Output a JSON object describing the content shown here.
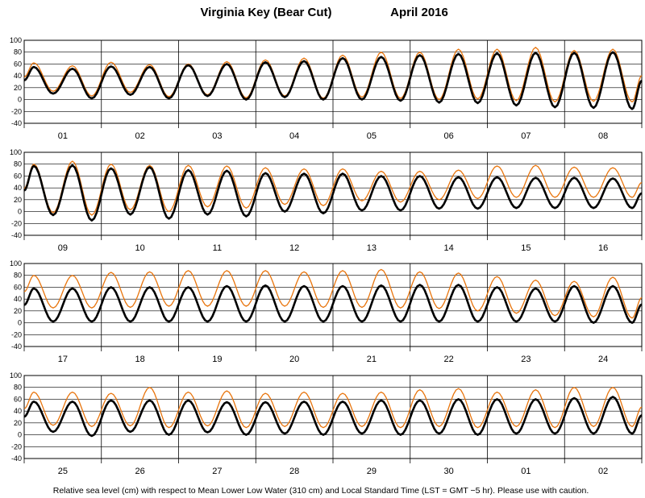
{
  "chart_data": {
    "type": "line",
    "title": "Virginia Key (Bear Cut)",
    "period": "April   2016",
    "footer": "Relative sea level (cm) with respect to Mean Lower Low Water (310 cm) and Local Standard Time (LST = GMT −5 hr). Please use with caution.",
    "ylim": [
      -40,
      100
    ],
    "yticks": [
      -40,
      -20,
      0,
      20,
      40,
      60,
      80,
      100
    ],
    "grid": true,
    "series": [
      {
        "color": "#000000",
        "width": 2.6
      },
      {
        "color": "#e8740c",
        "width": 1.3
      }
    ],
    "panels": [
      {
        "days": [
          "01",
          "02",
          "03",
          "04",
          "05",
          "06",
          "07",
          "08"
        ],
        "observed_highs": [
          55,
          52,
          56,
          55,
          58,
          60,
          63,
          65,
          70,
          72,
          75,
          77,
          78,
          79,
          79,
          80
        ],
        "observed_lows": [
          10,
          2,
          8,
          2,
          6,
          0,
          4,
          0,
          0,
          -2,
          -5,
          -6,
          -10,
          -13,
          -14,
          -16
        ],
        "predicted_highs": [
          62,
          57,
          63,
          59,
          60,
          64,
          67,
          70,
          75,
          80,
          80,
          85,
          85,
          88,
          83,
          85
        ],
        "predicted_lows": [
          14,
          6,
          12,
          5,
          8,
          3,
          6,
          2,
          4,
          2,
          0,
          1,
          -2,
          -4,
          -3,
          -4
        ]
      },
      {
        "days": [
          "09",
          "10",
          "11",
          "12",
          "13",
          "14",
          "15",
          "16"
        ],
        "observed_highs": [
          77,
          78,
          73,
          75,
          70,
          69,
          65,
          64,
          64,
          60,
          60,
          58,
          58,
          57,
          57,
          56
        ],
        "observed_lows": [
          -6,
          -15,
          -5,
          -12,
          -5,
          -8,
          0,
          -3,
          2,
          2,
          5,
          5,
          6,
          6,
          6,
          6
        ],
        "predicted_highs": [
          80,
          85,
          80,
          78,
          78,
          77,
          74,
          72,
          72,
          68,
          68,
          70,
          77,
          78,
          75,
          74
        ],
        "predicted_lows": [
          -2,
          -6,
          3,
          0,
          8,
          6,
          12,
          10,
          18,
          16,
          20,
          22,
          24,
          24,
          24,
          24
        ]
      },
      {
        "days": [
          "17",
          "18",
          "19",
          "20",
          "21",
          "22",
          "23",
          "24"
        ],
        "observed_highs": [
          58,
          58,
          60,
          60,
          60,
          62,
          63,
          62,
          62,
          63,
          64,
          64,
          60,
          58,
          62,
          62
        ],
        "observed_lows": [
          2,
          2,
          2,
          2,
          2,
          2,
          2,
          2,
          2,
          2,
          2,
          2,
          2,
          2,
          0,
          0
        ],
        "predicted_highs": [
          80,
          80,
          85,
          86,
          88,
          88,
          88,
          86,
          88,
          90,
          86,
          84,
          78,
          72,
          70,
          77
        ],
        "predicted_lows": [
          25,
          25,
          26,
          28,
          28,
          28,
          28,
          26,
          26,
          25,
          24,
          20,
          16,
          12,
          10,
          8
        ]
      },
      {
        "days": [
          "25",
          "26",
          "27",
          "28",
          "29",
          "30",
          "01",
          "02"
        ],
        "observed_highs": [
          56,
          56,
          58,
          58,
          58,
          55,
          55,
          56,
          56,
          58,
          58,
          60,
          60,
          60,
          62,
          64
        ],
        "observed_lows": [
          5,
          -2,
          5,
          0,
          4,
          0,
          2,
          0,
          2,
          0,
          2,
          0,
          2,
          2,
          2,
          2
        ],
        "predicted_highs": [
          72,
          72,
          70,
          80,
          72,
          74,
          70,
          72,
          70,
          72,
          76,
          78,
          72,
          76,
          80,
          80
        ],
        "predicted_lows": [
          16,
          14,
          15,
          12,
          15,
          12,
          14,
          12,
          14,
          12,
          14,
          12,
          14,
          12,
          14,
          14
        ]
      }
    ]
  }
}
